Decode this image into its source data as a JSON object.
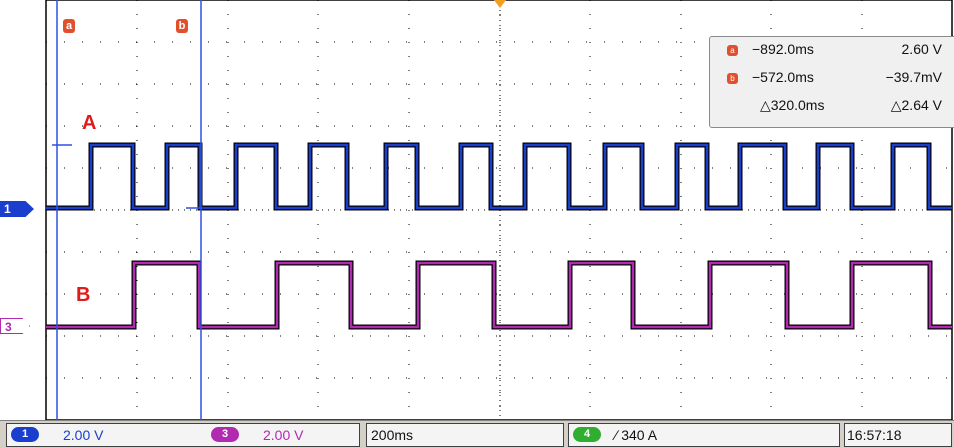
{
  "cursors": {
    "a_label": "a",
    "b_label": "b"
  },
  "channels": {
    "ch1": {
      "marker": "1",
      "color": "#1a3fcf"
    },
    "ch3": {
      "marker": "3",
      "color": "#b02bb0"
    }
  },
  "trace_labels": {
    "a": "A",
    "b": "B"
  },
  "readout": {
    "rows": [
      {
        "icon": "a",
        "time": "−892.0ms",
        "value": "2.60 V"
      },
      {
        "icon": "b",
        "time": "−572.0ms",
        "value": "−39.7mV"
      },
      {
        "icon": "delta",
        "time": "△320.0ms",
        "value": "△2.64 V"
      }
    ]
  },
  "status": {
    "ch1_num": "1",
    "ch1_scale": "2.00 V",
    "ch3_num": "3",
    "ch3_scale": "2.00 V",
    "timebase": "200ms",
    "trig_num": "4",
    "trigger": "∕ 340 A",
    "time": "16:57:18"
  },
  "colors": {
    "ch1": "#1a3fcf",
    "ch3": "#b02bb0",
    "cursor": "#3050e0",
    "cursor_marker": "#e1502d",
    "trigger_chip": "#2fae2f",
    "label": "#e01b1b"
  }
}
